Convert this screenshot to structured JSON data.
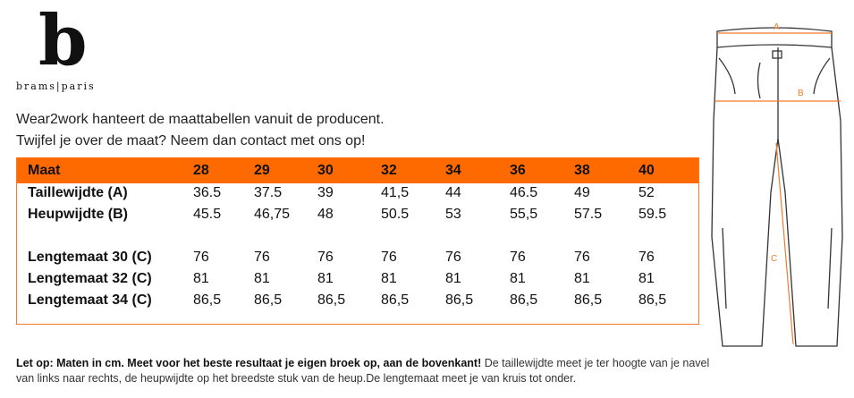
{
  "logo": {
    "letter": "b",
    "text": "brams|paris"
  },
  "intro": [
    "Wear2work hanteert de maattabellen vanuit de producent.",
    "Twijfel je over de maat? Neem dan contact met ons op!"
  ],
  "table": {
    "header_label": "Maat",
    "sizes": [
      "28",
      "29",
      "30",
      "32",
      "34",
      "36",
      "38",
      "40"
    ],
    "rows": [
      {
        "label": "Taillewijdte (A)",
        "values": [
          "36.5",
          "37.5",
          "39",
          "41,5",
          "44",
          "46.5",
          "49",
          "52"
        ]
      },
      {
        "label": "Heupwijdte (B)",
        "values": [
          "45.5",
          "46,75",
          "48",
          "50.5",
          "53",
          "55,5",
          "57.5",
          "59.5"
        ]
      },
      {
        "label": "Lengtemaat 30 (C)",
        "values": [
          "76",
          "76",
          "76",
          "76",
          "76",
          "76",
          "76",
          "76"
        ]
      },
      {
        "label": "Lengtemaat 32 (C)",
        "values": [
          "81",
          "81",
          "81",
          "81",
          "81",
          "81",
          "81",
          "81"
        ]
      },
      {
        "label": "Lengtemaat 34 (C)",
        "values": [
          "86,5",
          "86,5",
          "86,5",
          "86,5",
          "86,5",
          "86,5",
          "86,5",
          "86,5"
        ]
      }
    ]
  },
  "note": {
    "bold": "Let op: Maten in cm. Meet voor het beste resultaat je eigen broek op, aan de bovenkant!",
    "text": " De taillewijdte meet je ter hoogte van je navel van links naar rechts, de heupwijdte op het breedste stuk van de heup.De lengtemaat meet je van kruis tot onder."
  },
  "diagram": {
    "labels": [
      "A",
      "B",
      "C"
    ],
    "accent": "#f47a2a"
  }
}
